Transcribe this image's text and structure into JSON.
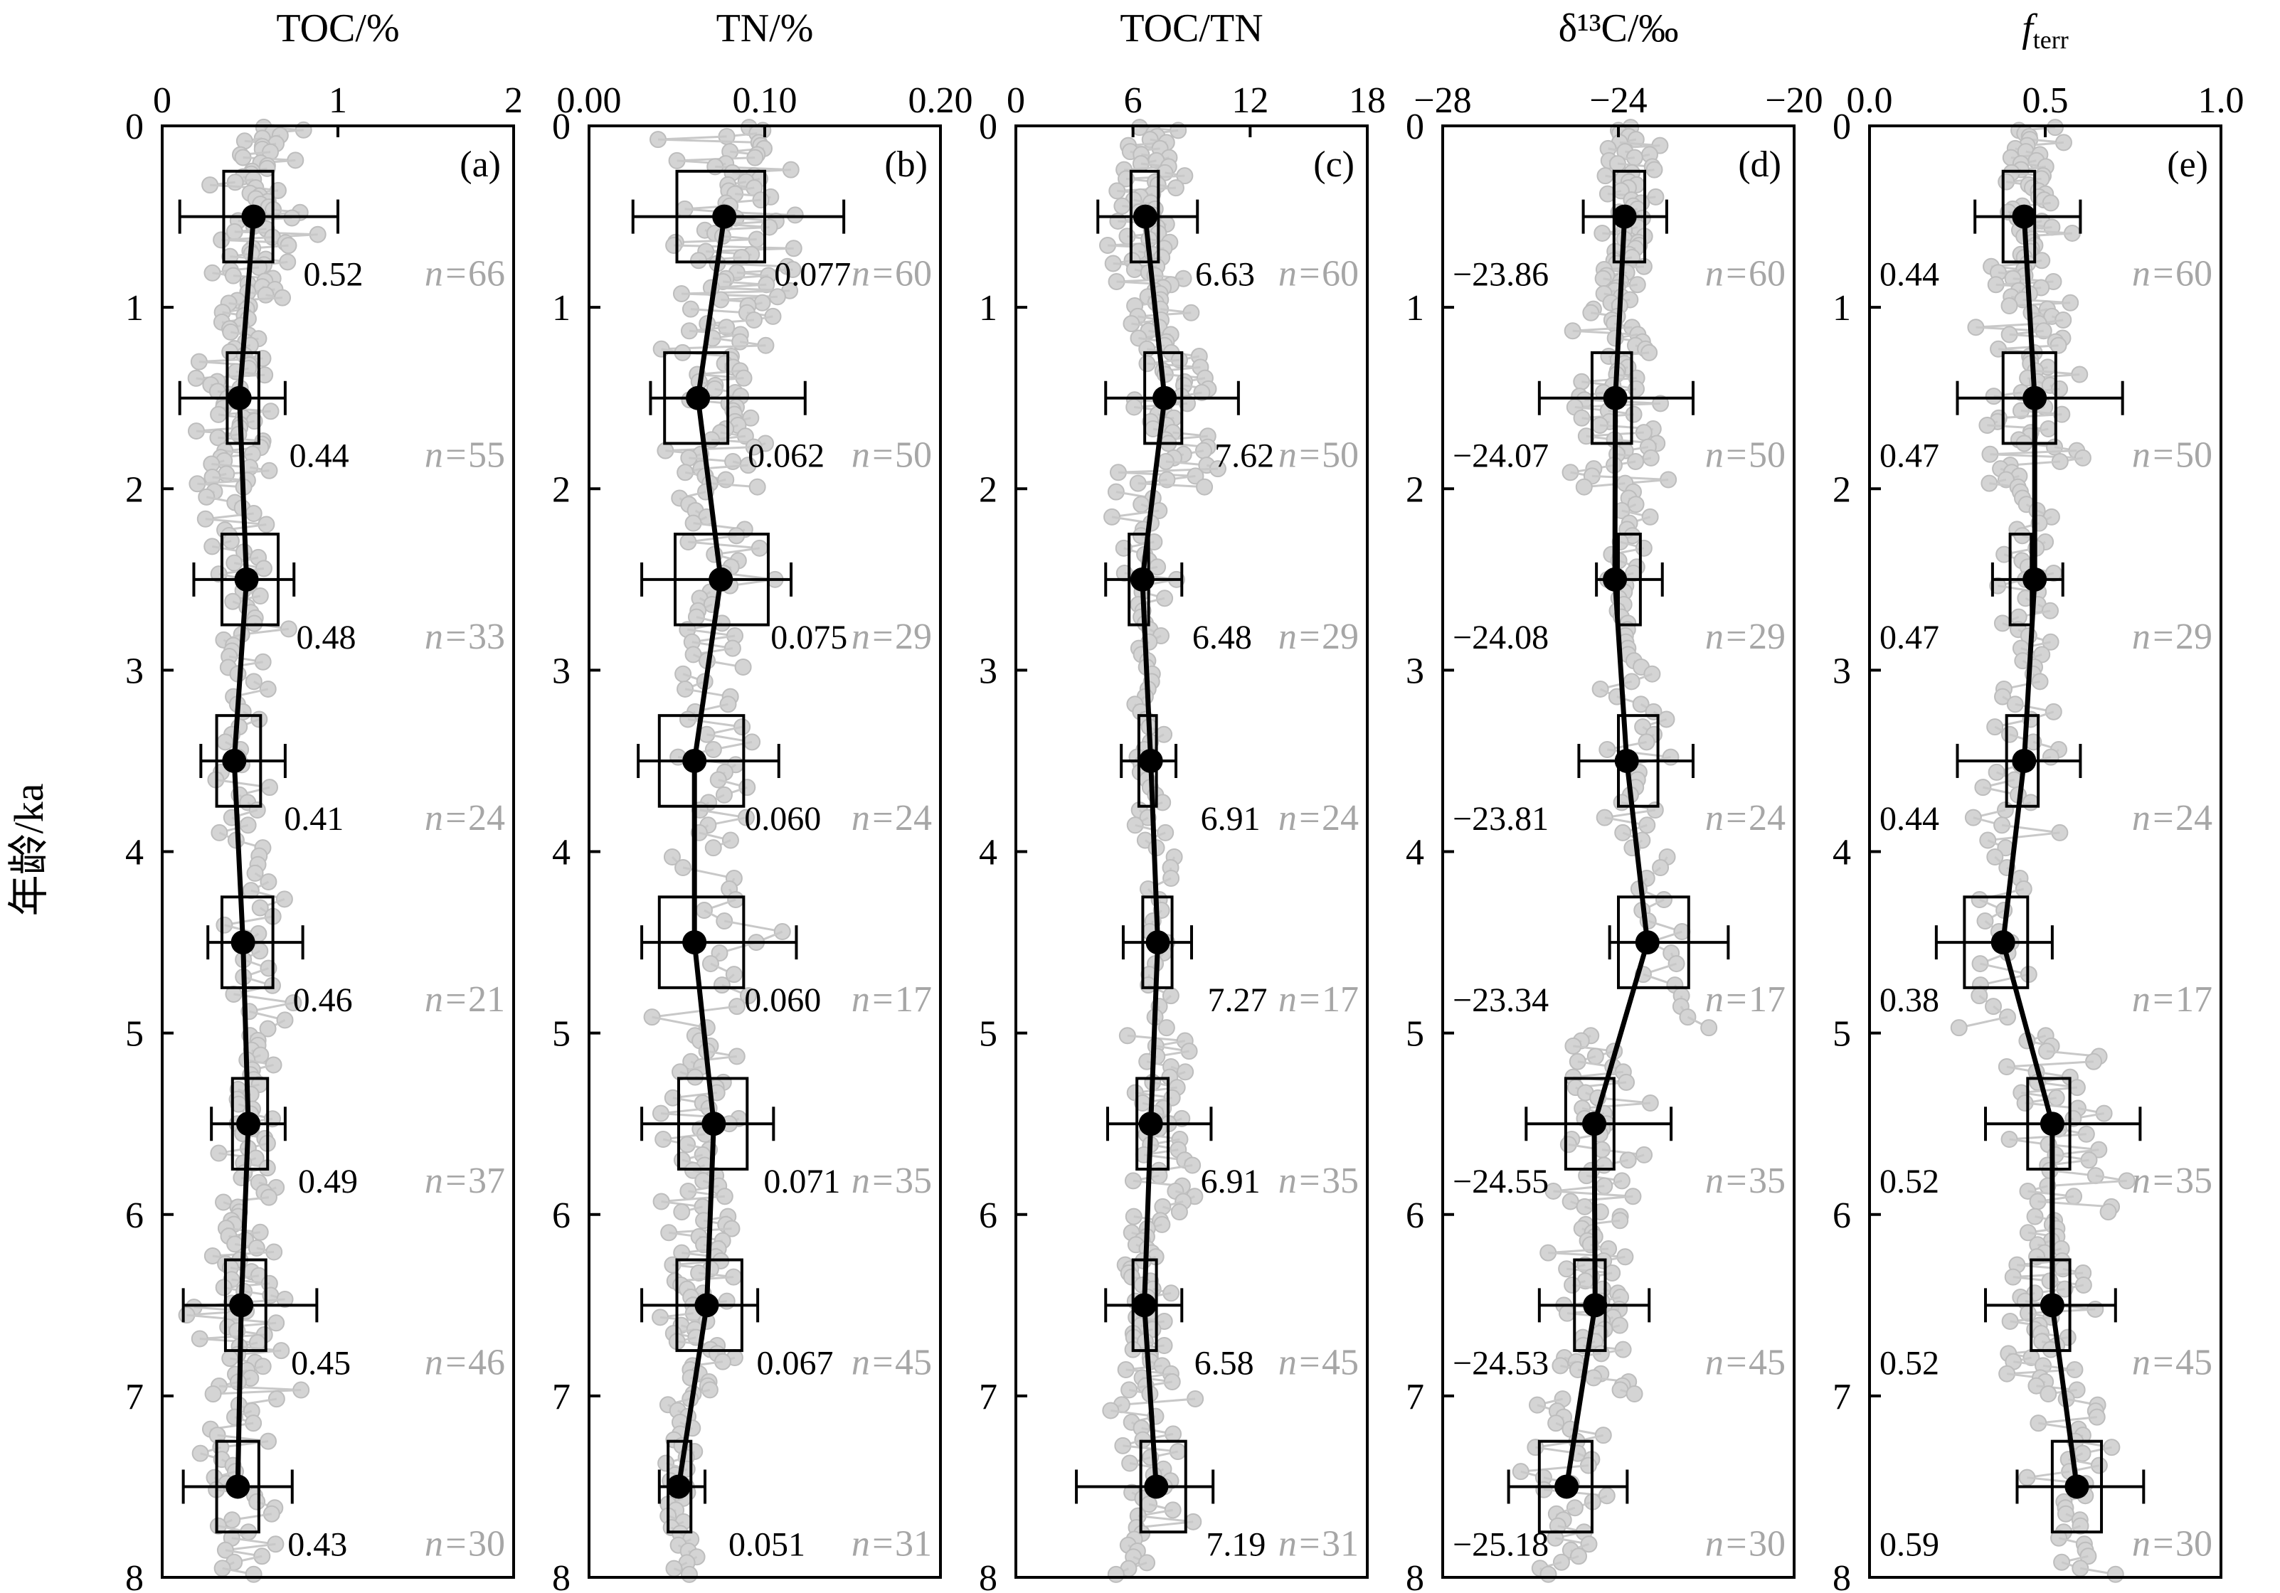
{
  "chart_data": {
    "type": "box",
    "ylabel": "年龄/ka",
    "ylim": [
      0,
      8
    ],
    "y_ticks": [
      0,
      1,
      2,
      3,
      4,
      5,
      6,
      7,
      8
    ],
    "y_inverted": true,
    "bin_centers": [
      0.5,
      1.5,
      2.5,
      3.5,
      4.5,
      5.5,
      6.5,
      7.5
    ],
    "n_label_prefix": "n=",
    "panels": [
      {
        "letter": "(a)",
        "title": "TOC/%",
        "xlim": [
          0,
          2
        ],
        "x_ticks": [
          "0",
          "1",
          "2"
        ],
        "x_tick_values": [
          0,
          1,
          2
        ],
        "mean_label_side": "right",
        "bins": [
          {
            "mean": 0.52,
            "label": "0.52",
            "n": "66",
            "q1": 0.35,
            "q3": 0.63,
            "whisker": [
              0.1,
              1.0
            ]
          },
          {
            "mean": 0.44,
            "label": "0.44",
            "n": "55",
            "q1": 0.37,
            "q3": 0.55,
            "whisker": [
              0.1,
              0.7
            ]
          },
          {
            "mean": 0.48,
            "label": "0.48",
            "n": "33",
            "q1": 0.34,
            "q3": 0.66,
            "whisker": [
              0.18,
              0.75
            ]
          },
          {
            "mean": 0.41,
            "label": "0.41",
            "n": "24",
            "q1": 0.31,
            "q3": 0.56,
            "whisker": [
              0.22,
              0.7
            ]
          },
          {
            "mean": 0.46,
            "label": "0.46",
            "n": "21",
            "q1": 0.34,
            "q3": 0.63,
            "whisker": [
              0.26,
              0.8
            ]
          },
          {
            "mean": 0.49,
            "label": "0.49",
            "n": "37",
            "q1": 0.4,
            "q3": 0.6,
            "whisker": [
              0.28,
              0.7
            ]
          },
          {
            "mean": 0.45,
            "label": "0.45",
            "n": "46",
            "q1": 0.36,
            "q3": 0.59,
            "whisker": [
              0.12,
              0.88
            ]
          },
          {
            "mean": 0.43,
            "label": "0.43",
            "n": "30",
            "q1": 0.31,
            "q3": 0.55,
            "whisker": [
              0.12,
              0.74
            ]
          }
        ]
      },
      {
        "letter": "(b)",
        "title": "TN/%",
        "xlim": [
          0,
          0.2
        ],
        "x_ticks": [
          "0.00",
          "0.10",
          "0.20"
        ],
        "x_tick_values": [
          0,
          0.1,
          0.2
        ],
        "mean_label_side": "right",
        "bins": [
          {
            "mean": 0.077,
            "label": "0.077",
            "n": "60",
            "q1": 0.05,
            "q3": 0.1,
            "whisker": [
              0.025,
              0.145
            ]
          },
          {
            "mean": 0.062,
            "label": "0.062",
            "n": "50",
            "q1": 0.043,
            "q3": 0.079,
            "whisker": [
              0.035,
              0.123
            ]
          },
          {
            "mean": 0.075,
            "label": "0.075",
            "n": "29",
            "q1": 0.049,
            "q3": 0.102,
            "whisker": [
              0.03,
              0.115
            ]
          },
          {
            "mean": 0.06,
            "label": "0.060",
            "n": "24",
            "q1": 0.04,
            "q3": 0.088,
            "whisker": [
              0.028,
              0.108
            ]
          },
          {
            "mean": 0.06,
            "label": "0.060",
            "n": "17",
            "q1": 0.04,
            "q3": 0.088,
            "whisker": [
              0.03,
              0.118
            ]
          },
          {
            "mean": 0.071,
            "label": "0.071",
            "n": "35",
            "q1": 0.051,
            "q3": 0.09,
            "whisker": [
              0.03,
              0.105
            ]
          },
          {
            "mean": 0.067,
            "label": "0.067",
            "n": "45",
            "q1": 0.05,
            "q3": 0.087,
            "whisker": [
              0.03,
              0.096
            ]
          },
          {
            "mean": 0.051,
            "label": "0.051",
            "n": "31",
            "q1": 0.045,
            "q3": 0.058,
            "whisker": [
              0.04,
              0.066
            ]
          }
        ]
      },
      {
        "letter": "(c)",
        "title": "TOC/TN",
        "xlim": [
          0,
          18
        ],
        "x_ticks": [
          "0",
          "6",
          "12",
          "18"
        ],
        "x_tick_values": [
          0,
          6,
          12,
          18
        ],
        "mean_label_side": "right",
        "bins": [
          {
            "mean": 6.63,
            "label": "6.63",
            "n": "60",
            "q1": 5.9,
            "q3": 7.3,
            "whisker": [
              4.2,
              9.3
            ]
          },
          {
            "mean": 7.62,
            "label": "7.62",
            "n": "50",
            "q1": 6.6,
            "q3": 8.5,
            "whisker": [
              4.6,
              11.4
            ]
          },
          {
            "mean": 6.48,
            "label": "6.48",
            "n": "29",
            "q1": 5.8,
            "q3": 6.8,
            "whisker": [
              4.6,
              8.5
            ]
          },
          {
            "mean": 6.91,
            "label": "6.91",
            "n": "24",
            "q1": 6.3,
            "q3": 7.2,
            "whisker": [
              5.4,
              8.2
            ]
          },
          {
            "mean": 7.27,
            "label": "7.27",
            "n": "17",
            "q1": 6.5,
            "q3": 8.0,
            "whisker": [
              5.5,
              9.0
            ]
          },
          {
            "mean": 6.91,
            "label": "6.91",
            "n": "35",
            "q1": 6.2,
            "q3": 7.8,
            "whisker": [
              4.7,
              10.0
            ]
          },
          {
            "mean": 6.58,
            "label": "6.58",
            "n": "45",
            "q1": 6.0,
            "q3": 7.2,
            "whisker": [
              4.6,
              8.5
            ]
          },
          {
            "mean": 7.19,
            "label": "7.19",
            "n": "31",
            "q1": 6.4,
            "q3": 8.7,
            "whisker": [
              3.1,
              10.1
            ]
          }
        ]
      },
      {
        "letter": "(d)",
        "title": "δ¹³C/‰",
        "xlim": [
          -28,
          -20
        ],
        "x_ticks": [
          "−28",
          "−24",
          "−20"
        ],
        "x_tick_values": [
          -28,
          -24,
          -20
        ],
        "mean_label_side": "left",
        "bins": [
          {
            "mean": -23.86,
            "label": "−23.86",
            "n": "60",
            "q1": -24.1,
            "q3": -23.4,
            "whisker": [
              -24.8,
              -22.9
            ]
          },
          {
            "mean": -24.07,
            "label": "−24.07",
            "n": "50",
            "q1": -24.6,
            "q3": -23.7,
            "whisker": [
              -25.8,
              -22.3
            ]
          },
          {
            "mean": -24.08,
            "label": "−24.08",
            "n": "29",
            "q1": -24.0,
            "q3": -23.5,
            "whisker": [
              -24.5,
              -23.0
            ]
          },
          {
            "mean": -23.81,
            "label": "−23.81",
            "n": "24",
            "q1": -24.0,
            "q3": -23.1,
            "whisker": [
              -24.9,
              -22.3
            ]
          },
          {
            "mean": -23.34,
            "label": "−23.34",
            "n": "17",
            "q1": -24.0,
            "q3": -22.4,
            "whisker": [
              -24.2,
              -21.5
            ]
          },
          {
            "mean": -24.55,
            "label": "−24.55",
            "n": "35",
            "q1": -25.2,
            "q3": -24.1,
            "whisker": [
              -26.1,
              -22.8
            ]
          },
          {
            "mean": -24.53,
            "label": "−24.53",
            "n": "45",
            "q1": -25.0,
            "q3": -24.3,
            "whisker": [
              -25.8,
              -23.3
            ]
          },
          {
            "mean": -25.18,
            "label": "−25.18",
            "n": "30",
            "q1": -25.8,
            "q3": -24.6,
            "whisker": [
              -26.5,
              -23.8
            ]
          }
        ]
      },
      {
        "letter": "(e)",
        "title": "f",
        "title_subscript": "terr",
        "xlim": [
          0,
          1
        ],
        "x_ticks": [
          "0.0",
          "0.5",
          "1.0"
        ],
        "x_tick_values": [
          0,
          0.5,
          1
        ],
        "mean_label_side": "left",
        "bins": [
          {
            "mean": 0.44,
            "label": "0.44",
            "n": "60",
            "q1": 0.38,
            "q3": 0.47,
            "whisker": [
              0.3,
              0.6
            ]
          },
          {
            "mean": 0.47,
            "label": "0.47",
            "n": "50",
            "q1": 0.38,
            "q3": 0.53,
            "whisker": [
              0.25,
              0.72
            ]
          },
          {
            "mean": 0.47,
            "label": "0.47",
            "n": "29",
            "q1": 0.4,
            "q3": 0.46,
            "whisker": [
              0.35,
              0.55
            ]
          },
          {
            "mean": 0.44,
            "label": "0.44",
            "n": "24",
            "q1": 0.39,
            "q3": 0.48,
            "whisker": [
              0.25,
              0.6
            ]
          },
          {
            "mean": 0.38,
            "label": "0.38",
            "n": "17",
            "q1": 0.27,
            "q3": 0.45,
            "whisker": [
              0.19,
              0.52
            ]
          },
          {
            "mean": 0.52,
            "label": "0.52",
            "n": "35",
            "q1": 0.45,
            "q3": 0.57,
            "whisker": [
              0.33,
              0.77
            ]
          },
          {
            "mean": 0.52,
            "label": "0.52",
            "n": "45",
            "q1": 0.46,
            "q3": 0.57,
            "whisker": [
              0.33,
              0.7
            ]
          },
          {
            "mean": 0.59,
            "label": "0.59",
            "n": "30",
            "q1": 0.52,
            "q3": 0.66,
            "whisker": [
              0.42,
              0.78
            ]
          }
        ]
      }
    ]
  }
}
